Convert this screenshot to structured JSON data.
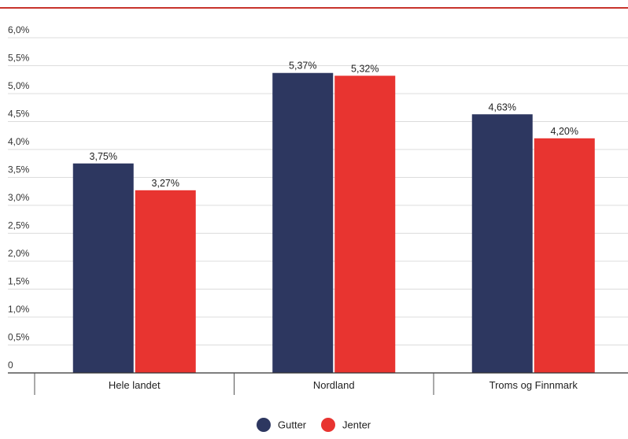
{
  "chart_data": {
    "type": "bar",
    "title": "",
    "xlabel": "",
    "ylabel": "",
    "categories": [
      "Hele landet",
      "Nordland",
      "Troms og Finnmark"
    ],
    "series": [
      {
        "name": "Gutter",
        "color": "#2d3760",
        "values": [
          3.75,
          5.37,
          4.63
        ],
        "labels": [
          "3,75%",
          "5,37%",
          "4,63%"
        ]
      },
      {
        "name": "Jenter",
        "color": "#e83430",
        "values": [
          3.27,
          5.32,
          4.2
        ],
        "labels": [
          "3,27%",
          "5,32%",
          "4,20%"
        ]
      }
    ],
    "ylim": [
      0,
      6
    ],
    "yticks": [
      0,
      0.5,
      1,
      1.5,
      2,
      2.5,
      3,
      3.5,
      4,
      4.5,
      5,
      5.5,
      6
    ],
    "ytick_labels": [
      "0",
      "0,5%",
      "1,0%",
      "1,5%",
      "2,0%",
      "2,5%",
      "3,0%",
      "3,5%",
      "4,0%",
      "4,5%",
      "5,0%",
      "5,5%",
      "6,0%"
    ],
    "grid": true,
    "legend_position": "bottom-center",
    "accent_color": "#c8342c"
  }
}
